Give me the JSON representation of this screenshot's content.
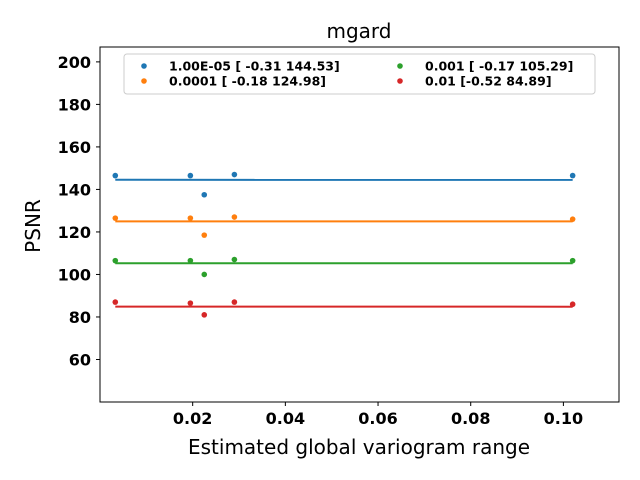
{
  "chart_data": {
    "type": "scatter",
    "title": "mgard",
    "xlabel": "Estimated global variogram range",
    "ylabel": "PSNR",
    "xlim": [
      0.0,
      0.112
    ],
    "ylim": [
      40,
      207
    ],
    "xticks": [
      0.02,
      0.04,
      0.06,
      0.08,
      0.1
    ],
    "xtick_labels": [
      "0.02",
      "0.04",
      "0.06",
      "0.08",
      "0.10"
    ],
    "yticks": [
      60,
      80,
      100,
      120,
      140,
      160,
      180,
      200
    ],
    "ytick_labels": [
      "60",
      "80",
      "100",
      "120",
      "140",
      "160",
      "180",
      "200"
    ],
    "grid": false,
    "legend_position": "top",
    "legend_columns": 2,
    "series": [
      {
        "name": "1.00E-05 [ -0.31 144.53]",
        "color": "#1f77b4",
        "points": [
          [
            0.0033,
            146.5
          ],
          [
            0.0195,
            146.5
          ],
          [
            0.0225,
            137.5
          ],
          [
            0.029,
            147.0
          ],
          [
            0.102,
            146.5
          ]
        ],
        "fit": {
          "slope": -0.31,
          "intercept": 144.53,
          "x_range": [
            0.0033,
            0.102
          ]
        }
      },
      {
        "name": "0.0001 [ -0.18 124.98]",
        "color": "#ff7f0e",
        "points": [
          [
            0.0033,
            126.5
          ],
          [
            0.0195,
            126.5
          ],
          [
            0.0225,
            118.5
          ],
          [
            0.029,
            127.0
          ],
          [
            0.102,
            126.0
          ]
        ],
        "fit": {
          "slope": -0.18,
          "intercept": 124.98,
          "x_range": [
            0.0033,
            0.102
          ]
        }
      },
      {
        "name": "0.001 [ -0.17 105.29]",
        "color": "#2ca02c",
        "points": [
          [
            0.0033,
            106.5
          ],
          [
            0.0195,
            106.5
          ],
          [
            0.0225,
            100.0
          ],
          [
            0.029,
            107.0
          ],
          [
            0.102,
            106.5
          ]
        ],
        "fit": {
          "slope": -0.17,
          "intercept": 105.29,
          "x_range": [
            0.0033,
            0.102
          ]
        }
      },
      {
        "name": "0.01 [-0.52 84.89]",
        "color": "#d62728",
        "points": [
          [
            0.0033,
            87.0
          ],
          [
            0.0195,
            86.5
          ],
          [
            0.0225,
            81.0
          ],
          [
            0.029,
            87.0
          ],
          [
            0.102,
            86.0
          ]
        ],
        "fit": {
          "slope": -0.52,
          "intercept": 84.89,
          "x_range": [
            0.0033,
            0.102
          ]
        }
      }
    ]
  }
}
